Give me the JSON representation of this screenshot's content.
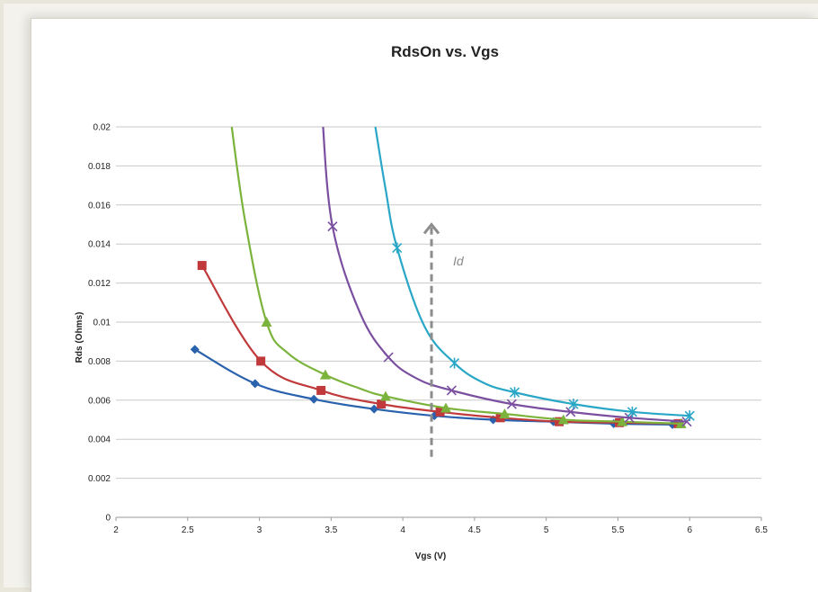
{
  "chart_data": {
    "type": "line",
    "title": "RdsOn vs. Vgs",
    "xlabel": "Vgs (V)",
    "ylabel": "Rds (Ohms)",
    "xlim": [
      2,
      6.5
    ],
    "ylim": [
      0,
      0.02
    ],
    "x_ticks": [
      2,
      2.5,
      3,
      3.5,
      4,
      4.5,
      5,
      5.5,
      6,
      6.5
    ],
    "x_tick_labels": [
      "2",
      "2.5",
      "3",
      "3.5",
      "4",
      "4.5",
      "5",
      "5.5",
      "6",
      "6.5"
    ],
    "y_ticks": [
      0,
      0.002,
      0.004,
      0.006,
      0.008,
      0.01,
      0.012,
      0.014,
      0.016,
      0.018,
      0.02
    ],
    "y_tick_labels": [
      "0",
      "0.002",
      "0.004",
      "0.006",
      "0.008",
      "0.01",
      "0.012",
      "0.014",
      "0.016",
      "0.018",
      "0.02"
    ],
    "grid": "horizontal",
    "legend": "none",
    "series": [
      {
        "color": "#2a62ad",
        "marker": "diamond",
        "points": [
          [
            2.55,
            0.0086
          ],
          [
            2.97,
            0.00685
          ],
          [
            3.38,
            0.00605
          ],
          [
            3.8,
            0.00555
          ],
          [
            4.22,
            0.0052
          ],
          [
            4.63,
            0.005
          ],
          [
            5.05,
            0.0049
          ],
          [
            5.47,
            0.0048
          ],
          [
            5.88,
            0.00475
          ]
        ],
        "markers_x": [
          2.55,
          2.97,
          3.38,
          3.8,
          4.22,
          4.63,
          5.05,
          5.47,
          5.88
        ]
      },
      {
        "color": "#c0393b",
        "marker": "square",
        "points": [
          [
            2.6,
            0.0129
          ],
          [
            3.01,
            0.008
          ],
          [
            3.43,
            0.0065
          ],
          [
            3.85,
            0.0058
          ],
          [
            4.26,
            0.0054
          ],
          [
            4.68,
            0.0051
          ],
          [
            5.09,
            0.0049
          ],
          [
            5.51,
            0.00485
          ],
          [
            5.92,
            0.0048
          ]
        ],
        "markers_x": [
          2.6,
          3.01,
          3.43,
          3.85,
          4.26,
          4.68,
          5.09,
          5.51,
          5.92
        ]
      },
      {
        "color": "#7cb33c",
        "marker": "triangle",
        "points": [
          [
            2.8,
            0.0204
          ],
          [
            2.9,
            0.0152
          ],
          [
            3.05,
            0.01
          ],
          [
            3.2,
            0.0084
          ],
          [
            3.46,
            0.0073
          ],
          [
            3.7,
            0.0066
          ],
          [
            3.88,
            0.0062
          ],
          [
            4.3,
            0.0056
          ],
          [
            4.71,
            0.0053
          ],
          [
            5.12,
            0.005
          ],
          [
            5.53,
            0.0049
          ],
          [
            5.94,
            0.0048
          ]
        ],
        "markers_x": [
          3.05,
          3.46,
          3.88,
          4.3,
          4.71,
          5.12,
          5.53,
          5.94
        ]
      },
      {
        "color": "#7b4fa0",
        "marker": "x",
        "points": [
          [
            3.44,
            0.0204
          ],
          [
            3.51,
            0.0149
          ],
          [
            3.7,
            0.0105
          ],
          [
            3.9,
            0.0082
          ],
          [
            4.1,
            0.0071
          ],
          [
            4.34,
            0.0065
          ],
          [
            4.76,
            0.0058
          ],
          [
            5.17,
            0.0054
          ],
          [
            5.58,
            0.0051
          ],
          [
            5.98,
            0.0049
          ]
        ],
        "markers_x": [
          3.51,
          3.9,
          4.34,
          4.76,
          5.17,
          5.58,
          5.98
        ]
      },
      {
        "color": "#2aa7c6",
        "marker": "asterisk",
        "points": [
          [
            3.8,
            0.0204
          ],
          [
            3.88,
            0.0168
          ],
          [
            3.96,
            0.0138
          ],
          [
            4.15,
            0.0098
          ],
          [
            4.36,
            0.0079
          ],
          [
            4.56,
            0.0069
          ],
          [
            4.78,
            0.0064
          ],
          [
            5.19,
            0.0058
          ],
          [
            5.6,
            0.0054
          ],
          [
            6.0,
            0.0052
          ]
        ],
        "markers_x": [
          3.96,
          4.36,
          4.78,
          5.19,
          5.6,
          6.0
        ]
      }
    ],
    "annotation": {
      "text": "Id",
      "arrow_x": 4.2,
      "arrow_y_from": 0.0031,
      "arrow_y_to": 0.015,
      "label_x": 4.35,
      "label_y": 0.0129,
      "arrow_color": "#8c8c8c"
    }
  }
}
